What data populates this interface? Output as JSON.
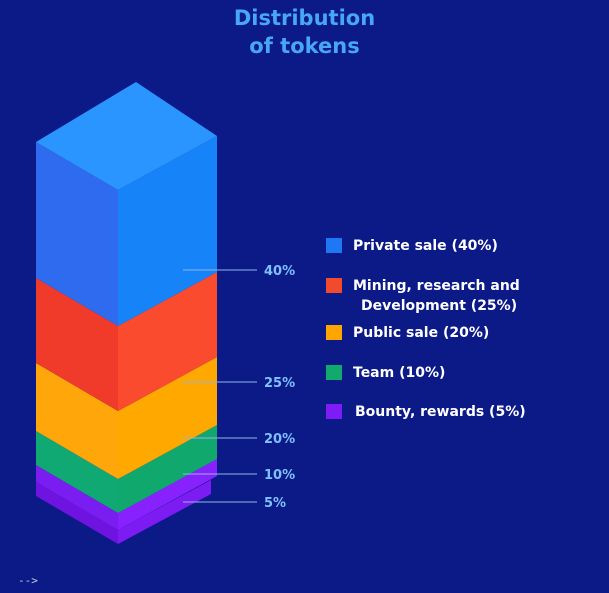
{
  "title": {
    "line1": "Distribution",
    "line2": "of tokens"
  },
  "colors": {
    "background": "#0b1a86",
    "title": "#47a7f5",
    "label": "#7fc0ff",
    "leader": "#8fb6e8"
  },
  "chart_data": {
    "type": "stacked-isometric-bar",
    "title": "Distribution of tokens",
    "categories": [
      "Private sale",
      "Mining, research and Development",
      "Public sale",
      "Team",
      "Bounty, rewards"
    ],
    "values": [
      40,
      25,
      20,
      10,
      5
    ],
    "unit": "%",
    "data_labels": [
      "40%",
      "25%",
      "20%",
      "10%",
      "5%"
    ],
    "series": [
      {
        "name": "Private sale",
        "value": 40,
        "label": "40%",
        "color": "#1e78f5",
        "color_left": "#2f6bef",
        "color_right": "#1683f9",
        "color_top": "#2a95ff"
      },
      {
        "name": "Mining, research and Development",
        "value": 25,
        "label": "25%",
        "color": "#f24a2c",
        "color_left": "#f03a2a",
        "color_right": "#fb4b2e",
        "color_top": "#ff6a3e"
      },
      {
        "name": "Public sale",
        "value": 20,
        "label": "20%",
        "color": "#ffa500",
        "color_left": "#ffa60a",
        "color_right": "#ffa800",
        "color_top": "#ffbf2a"
      },
      {
        "name": "Team",
        "value": 10,
        "label": "10%",
        "color": "#12aa6c",
        "color_left": "#10a873",
        "color_right": "#11a86d",
        "color_top": "#1bc47f"
      },
      {
        "name": "Bounty, rewards",
        "value": 5,
        "label": "5%",
        "color": "#7f1cf5",
        "color_left": "#7a1df0",
        "color_right": "#8722ff",
        "color_top": "#9a3cff"
      }
    ]
  },
  "legend": {
    "items": [
      {
        "text": "Private sale (40%)",
        "color": "#1e78f5"
      },
      {
        "text_line1": "Mining, research and",
        "text_line2": "Development (25%)",
        "color": "#f24a2c"
      },
      {
        "text": "Public sale (20%)",
        "color": "#ffa500"
      },
      {
        "text": "Team (10%)",
        "color": "#12aa6c"
      },
      {
        "text": "Bounty, rewards (5%)",
        "color": "#7f1cf5"
      }
    ]
  },
  "footer": {
    "text": "-->"
  }
}
